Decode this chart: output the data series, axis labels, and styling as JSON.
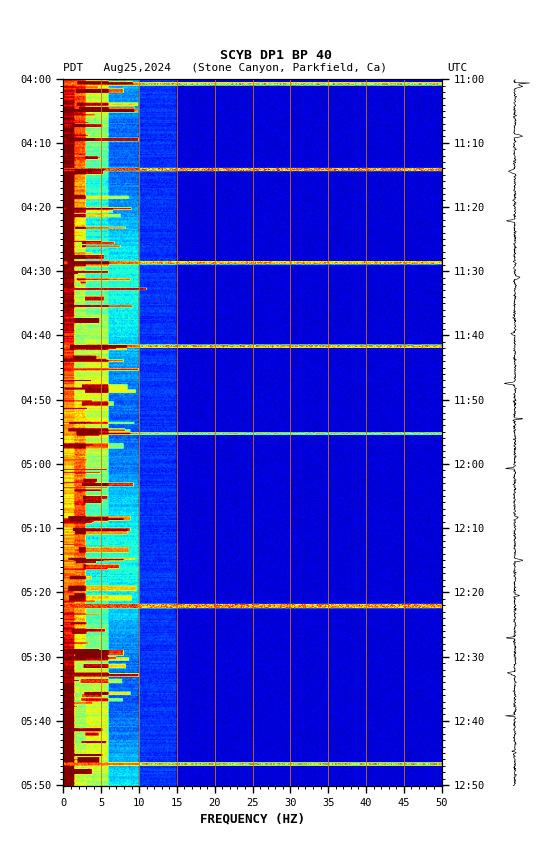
{
  "title_line1": "SCYB DP1 BP 40",
  "title_line2_left": "PDT   Aug25,2024   (Stone Canyon, Parkfield, Ca)",
  "title_line2_right": "UTC",
  "xlabel": "FREQUENCY (HZ)",
  "freq_min": 0,
  "freq_max": 50,
  "time_left_labels": [
    "04:00",
    "04:10",
    "04:20",
    "04:30",
    "04:40",
    "04:50",
    "05:00",
    "05:10",
    "05:20",
    "05:30",
    "05:40",
    "05:50"
  ],
  "time_right_labels": [
    "11:00",
    "11:10",
    "11:20",
    "11:30",
    "11:40",
    "11:50",
    "12:00",
    "12:10",
    "12:20",
    "12:30",
    "12:40",
    "12:50"
  ],
  "freq_ticks": [
    0,
    5,
    10,
    15,
    20,
    25,
    30,
    35,
    40,
    45,
    50
  ],
  "vertical_lines_freq": [
    5,
    10,
    15,
    20,
    25,
    30,
    35,
    40,
    45
  ],
  "background_color": "#ffffff",
  "colormap": "jet",
  "n_time": 660,
  "n_freq": 500,
  "seed": 42,
  "waveform_seed": 77,
  "event_rows_full": [
    [
      3,
      6,
      0.88
    ],
    [
      83,
      86,
      0.92
    ],
    [
      170,
      173,
      0.9
    ],
    [
      248,
      251,
      0.91
    ],
    [
      330,
      332,
      0.85
    ],
    [
      490,
      494,
      0.93
    ],
    [
      638,
      641,
      0.89
    ]
  ],
  "event_rows_partial": [
    [
      55,
      58,
      0.2,
      0.88
    ],
    [
      120,
      122,
      0.18,
      0.85
    ],
    [
      195,
      197,
      0.22,
      0.87
    ],
    [
      270,
      272,
      0.2,
      0.84
    ],
    [
      410,
      412,
      0.16,
      0.86
    ],
    [
      555,
      558,
      0.2,
      0.9
    ]
  ]
}
